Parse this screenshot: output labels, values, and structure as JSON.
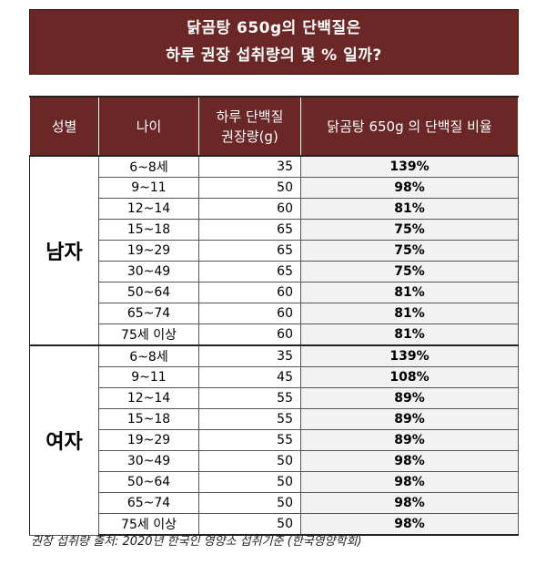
{
  "title": {
    "line1": "닭곰탕 650g의 단백질은",
    "line2": "하루 권장 섭취량의 몇 % 일까?"
  },
  "table": {
    "headers": {
      "sex": "성별",
      "age": "나이",
      "recommended_line1": "하루 단백질",
      "recommended_line2": "권장량(g)",
      "ratio": "닭곰탕 650g 의 단백질 비율"
    },
    "groups": [
      {
        "sex": "남자",
        "rows": [
          {
            "age": "6~8세",
            "grams": "35",
            "pct": "139%"
          },
          {
            "age": "9~11",
            "grams": "50",
            "pct": "98%"
          },
          {
            "age": "12~14",
            "grams": "60",
            "pct": "81%"
          },
          {
            "age": "15~18",
            "grams": "65",
            "pct": "75%"
          },
          {
            "age": "19~29",
            "grams": "65",
            "pct": "75%"
          },
          {
            "age": "30~49",
            "grams": "65",
            "pct": "75%"
          },
          {
            "age": "50~64",
            "grams": "60",
            "pct": "81%"
          },
          {
            "age": "65~74",
            "grams": "60",
            "pct": "81%"
          },
          {
            "age": "75세 이상",
            "grams": "60",
            "pct": "81%"
          }
        ]
      },
      {
        "sex": "여자",
        "rows": [
          {
            "age": "6~8세",
            "grams": "35",
            "pct": "139%"
          },
          {
            "age": "9~11",
            "grams": "45",
            "pct": "108%"
          },
          {
            "age": "12~14",
            "grams": "55",
            "pct": "89%"
          },
          {
            "age": "15~18",
            "grams": "55",
            "pct": "89%"
          },
          {
            "age": "19~29",
            "grams": "55",
            "pct": "89%"
          },
          {
            "age": "30~49",
            "grams": "50",
            "pct": "98%"
          },
          {
            "age": "50~64",
            "grams": "50",
            "pct": "98%"
          },
          {
            "age": "65~74",
            "grams": "50",
            "pct": "98%"
          },
          {
            "age": "75세 이상",
            "grams": "50",
            "pct": "98%"
          }
        ]
      }
    ]
  },
  "source": "권장 섭취량 출처: 2020년 한국인 영양소 섭취기준 (한국영양학회)"
}
